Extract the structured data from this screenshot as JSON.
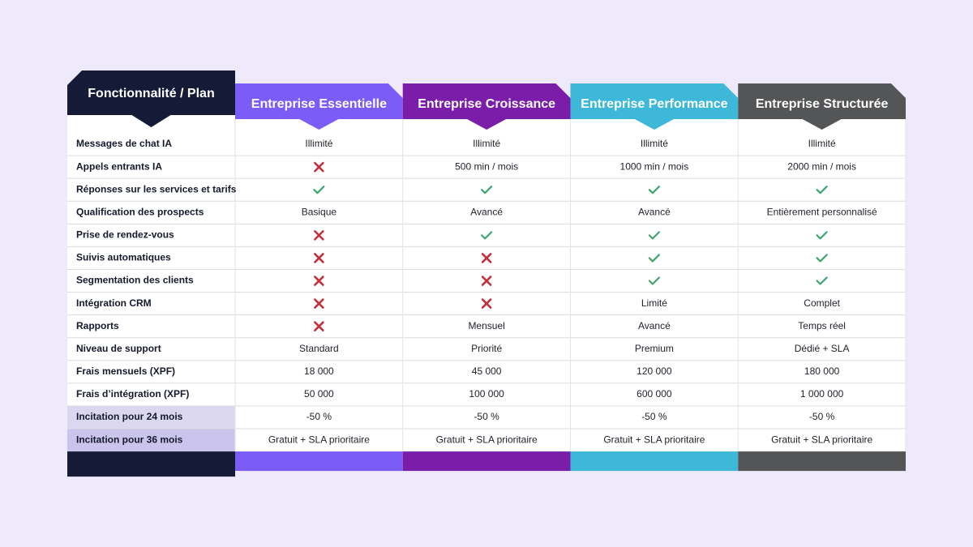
{
  "header": {
    "label": "Fonctionnalité / Plan",
    "color": "#151b36"
  },
  "plans": [
    {
      "name": "Entreprise Essentielle",
      "color": "#7b5cf6"
    },
    {
      "name": "Entreprise Croissance",
      "color": "#7a1ea9"
    },
    {
      "name": "Entreprise Performance",
      "color": "#3db8d8"
    },
    {
      "name": "Entreprise Structurée",
      "color": "#545557"
    }
  ],
  "rows": [
    {
      "feature": "Messages de chat IA",
      "cells": [
        "Illimité",
        "Illimité",
        "Illimité",
        "Illimité"
      ]
    },
    {
      "feature": "Appels entrants IA",
      "cells": [
        false,
        "500 min / mois",
        "1000 min / mois",
        "2000 min / mois"
      ]
    },
    {
      "feature": "Réponses sur les services et tarifs",
      "cells": [
        true,
        true,
        true,
        true
      ]
    },
    {
      "feature": "Qualification des prospects",
      "cells": [
        "Basique",
        "Avancé",
        "Avancé",
        "Entièrement personnalisé"
      ]
    },
    {
      "feature": "Prise de rendez-vous",
      "cells": [
        false,
        true,
        true,
        true
      ]
    },
    {
      "feature": "Suivis automatiques",
      "cells": [
        false,
        false,
        true,
        true
      ]
    },
    {
      "feature": "Segmentation des clients",
      "cells": [
        false,
        false,
        true,
        true
      ]
    },
    {
      "feature": "Intégration CRM",
      "cells": [
        false,
        false,
        "Limité",
        "Complet"
      ]
    },
    {
      "feature": "Rapports",
      "cells": [
        false,
        "Mensuel",
        "Avancé",
        "Temps réel"
      ]
    },
    {
      "feature": "Niveau de support",
      "cells": [
        "Standard",
        "Priorité",
        "Premium",
        "Dédié + SLA"
      ]
    },
    {
      "feature": "Frais mensuels (XPF)",
      "cells": [
        "18 000",
        "45 000",
        "120 000",
        "180 000"
      ]
    },
    {
      "feature": "Frais d’intégration (XPF)",
      "cells": [
        "50 000",
        "100 000",
        "600 000",
        "1 000 000"
      ]
    },
    {
      "feature": "Incitation pour 24 mois",
      "cells": [
        "-50 %",
        "-50 %",
        "-50 %",
        "-50 %"
      ]
    },
    {
      "feature": "Incitation pour 36 mois",
      "cells": [
        "Gratuit + SLA prioritaire",
        "Gratuit + SLA prioritaire",
        "Gratuit + SLA prioritaire",
        "Gratuit + SLA prioritaire"
      ]
    }
  ]
}
